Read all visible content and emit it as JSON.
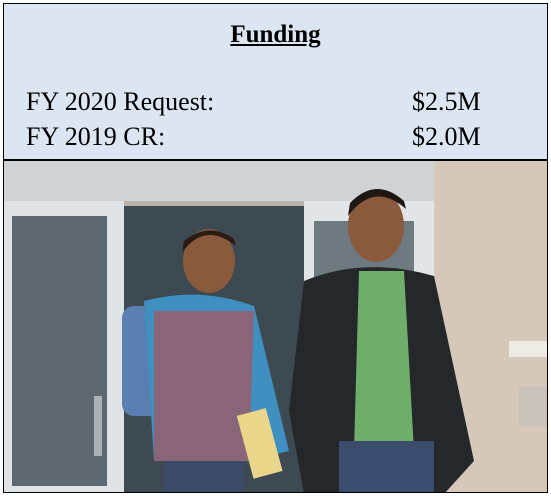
{
  "header": {
    "title": "Funding"
  },
  "table": {
    "rows": [
      [
        "FY 2020 Request:",
        "$2.5M"
      ],
      [
        "FY 2019 CR:",
        "$2.0M"
      ]
    ]
  }
}
